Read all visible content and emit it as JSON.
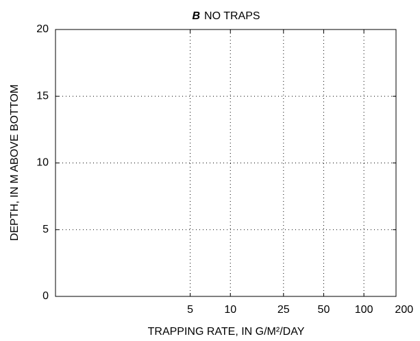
{
  "chart_data": {
    "type": "line",
    "panel": "B",
    "title": "NO TRAPS",
    "xlabel": "TRAPPING RATE, IN G/M²/DAY",
    "ylabel": "DEPTH, IN M ABOVE BOTTOM",
    "xscale": "log",
    "xlim": [
      0.49,
      174
    ],
    "xticks": [
      5,
      10,
      25,
      50,
      100,
      200
    ],
    "ylim": [
      0,
      20
    ],
    "yticks": [
      0,
      5,
      10,
      15,
      20
    ],
    "grid": true,
    "series": []
  }
}
